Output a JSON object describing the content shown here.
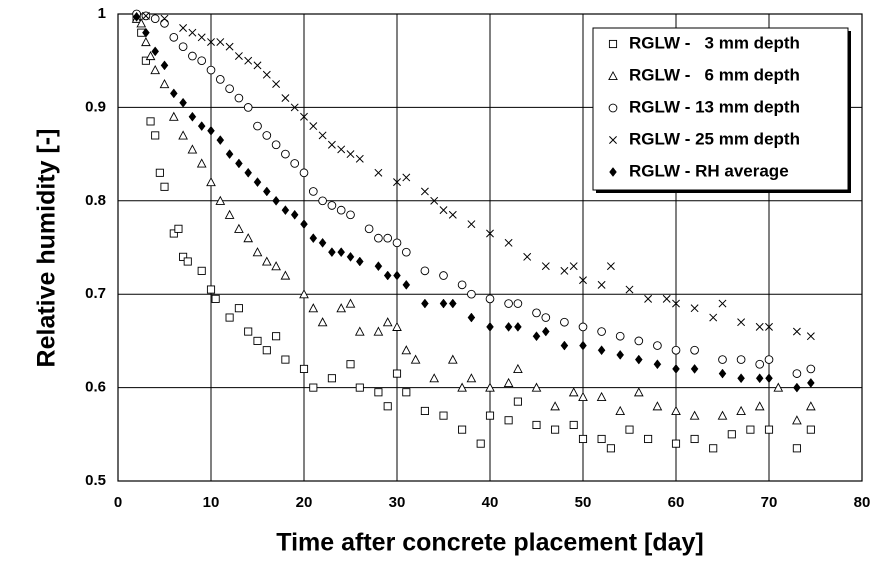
{
  "chart_data": {
    "type": "scatter",
    "xlabel": "Time after concrete placement [day]",
    "ylabel": "Relative humidity [-]",
    "xlim": [
      0,
      80
    ],
    "xticks": [
      0,
      10,
      20,
      30,
      40,
      50,
      60,
      70,
      80
    ],
    "ylim": [
      0.5,
      1
    ],
    "yticks": [
      0.5,
      0.6,
      0.7,
      0.8,
      0.9,
      1
    ],
    "grid": true,
    "legend": "top-right",
    "series": [
      {
        "name": "RGLW -   3 mm depth",
        "marker": "square",
        "color": "#000000",
        "x": [
          2,
          2.5,
          3,
          3.5,
          4,
          4.5,
          5,
          6,
          6.5,
          7,
          7.5,
          9,
          10,
          10.5,
          12,
          13,
          14,
          15,
          16,
          17,
          18,
          20,
          21,
          23,
          25,
          26,
          28,
          29,
          30,
          31,
          33,
          35,
          37,
          39,
          40,
          42,
          43,
          45,
          47,
          49,
          50,
          52,
          53,
          55,
          57,
          60,
          62,
          64,
          66,
          68,
          70,
          73,
          74.5
        ],
        "values": [
          0.995,
          0.98,
          0.95,
          0.885,
          0.87,
          0.83,
          0.815,
          0.765,
          0.77,
          0.74,
          0.735,
          0.725,
          0.705,
          0.695,
          0.675,
          0.685,
          0.66,
          0.65,
          0.64,
          0.655,
          0.63,
          0.62,
          0.6,
          0.61,
          0.625,
          0.6,
          0.595,
          0.58,
          0.615,
          0.595,
          0.575,
          0.57,
          0.555,
          0.54,
          0.57,
          0.565,
          0.585,
          0.56,
          0.555,
          0.56,
          0.545,
          0.545,
          0.535,
          0.555,
          0.545,
          0.54,
          0.545,
          0.535,
          0.55,
          0.555,
          0.555,
          0.535,
          0.555
        ]
      },
      {
        "name": "RGLW -   6 mm depth",
        "marker": "triangle",
        "color": "#000000",
        "x": [
          2,
          2.5,
          3,
          3.5,
          4,
          5,
          6,
          7,
          8,
          9,
          10,
          11,
          12,
          13,
          14,
          15,
          16,
          17,
          18,
          20,
          21,
          22,
          24,
          25,
          26,
          28,
          29,
          30,
          31,
          32,
          34,
          36,
          37,
          38,
          40,
          42,
          43,
          45,
          47,
          49,
          50,
          52,
          54,
          56,
          58,
          60,
          62,
          65,
          67,
          69,
          71,
          73,
          74.5
        ],
        "values": [
          0.995,
          0.99,
          0.97,
          0.955,
          0.94,
          0.925,
          0.89,
          0.87,
          0.855,
          0.84,
          0.82,
          0.8,
          0.785,
          0.77,
          0.76,
          0.745,
          0.735,
          0.73,
          0.72,
          0.7,
          0.685,
          0.67,
          0.685,
          0.69,
          0.66,
          0.66,
          0.67,
          0.665,
          0.64,
          0.63,
          0.61,
          0.63,
          0.6,
          0.61,
          0.6,
          0.605,
          0.62,
          0.6,
          0.58,
          0.595,
          0.59,
          0.59,
          0.575,
          0.595,
          0.58,
          0.575,
          0.57,
          0.57,
          0.575,
          0.58,
          0.6,
          0.565,
          0.58
        ]
      },
      {
        "name": "RGLW - 13 mm depth",
        "marker": "circle",
        "color": "#000000",
        "x": [
          2,
          3,
          4,
          5,
          6,
          7,
          8,
          9,
          10,
          11,
          12,
          13,
          14,
          15,
          16,
          17,
          18,
          19,
          20,
          21,
          22,
          23,
          24,
          25,
          27,
          28,
          29,
          30,
          31,
          33,
          35,
          37,
          38,
          40,
          42,
          43,
          45,
          46,
          48,
          50,
          52,
          54,
          56,
          58,
          60,
          62,
          65,
          67,
          69,
          70,
          73,
          74.5
        ],
        "values": [
          1,
          0.998,
          0.995,
          0.99,
          0.975,
          0.965,
          0.955,
          0.95,
          0.94,
          0.93,
          0.92,
          0.91,
          0.9,
          0.88,
          0.87,
          0.86,
          0.85,
          0.84,
          0.83,
          0.81,
          0.8,
          0.795,
          0.79,
          0.785,
          0.77,
          0.76,
          0.76,
          0.755,
          0.745,
          0.725,
          0.72,
          0.71,
          0.7,
          0.695,
          0.69,
          0.69,
          0.68,
          0.675,
          0.67,
          0.665,
          0.66,
          0.655,
          0.65,
          0.645,
          0.64,
          0.64,
          0.63,
          0.63,
          0.625,
          0.63,
          0.615,
          0.62
        ]
      },
      {
        "name": "RGLW - 25 mm depth",
        "marker": "x",
        "color": "#000000",
        "x": [
          3,
          5,
          7,
          8,
          9,
          10,
          11,
          12,
          13,
          14,
          15,
          16,
          17,
          18,
          19,
          20,
          21,
          22,
          23,
          24,
          25,
          26,
          28,
          30,
          31,
          33,
          34,
          35,
          36,
          38,
          40,
          42,
          44,
          46,
          48,
          49,
          50,
          52,
          53,
          55,
          57,
          59,
          60,
          62,
          64,
          65,
          67,
          69,
          70,
          73,
          74.5
        ],
        "values": [
          0.998,
          0.995,
          0.985,
          0.98,
          0.975,
          0.97,
          0.97,
          0.965,
          0.955,
          0.95,
          0.945,
          0.935,
          0.925,
          0.91,
          0.9,
          0.89,
          0.88,
          0.87,
          0.86,
          0.855,
          0.85,
          0.845,
          0.83,
          0.82,
          0.825,
          0.81,
          0.8,
          0.79,
          0.785,
          0.775,
          0.765,
          0.755,
          0.74,
          0.73,
          0.725,
          0.73,
          0.715,
          0.71,
          0.73,
          0.705,
          0.695,
          0.695,
          0.69,
          0.685,
          0.675,
          0.69,
          0.67,
          0.665,
          0.665,
          0.66,
          0.655
        ]
      },
      {
        "name": "RGLW - RH average",
        "marker": "diamond",
        "color": "#000000",
        "x": [
          2,
          3,
          4,
          5,
          6,
          7,
          8,
          9,
          10,
          11,
          12,
          13,
          14,
          15,
          16,
          17,
          18,
          19,
          20,
          21,
          22,
          23,
          24,
          25,
          26,
          28,
          29,
          30,
          31,
          33,
          35,
          36,
          38,
          40,
          42,
          43,
          45,
          46,
          48,
          50,
          52,
          54,
          56,
          58,
          60,
          62,
          65,
          67,
          69,
          70,
          73,
          74.5
        ],
        "values": [
          0.997,
          0.98,
          0.96,
          0.945,
          0.915,
          0.905,
          0.89,
          0.88,
          0.875,
          0.865,
          0.85,
          0.84,
          0.83,
          0.82,
          0.81,
          0.8,
          0.79,
          0.785,
          0.775,
          0.76,
          0.755,
          0.745,
          0.745,
          0.74,
          0.735,
          0.73,
          0.72,
          0.72,
          0.71,
          0.69,
          0.69,
          0.69,
          0.675,
          0.665,
          0.665,
          0.665,
          0.655,
          0.66,
          0.645,
          0.645,
          0.64,
          0.635,
          0.63,
          0.625,
          0.62,
          0.62,
          0.615,
          0.61,
          0.61,
          0.61,
          0.6,
          0.605
        ]
      }
    ]
  }
}
